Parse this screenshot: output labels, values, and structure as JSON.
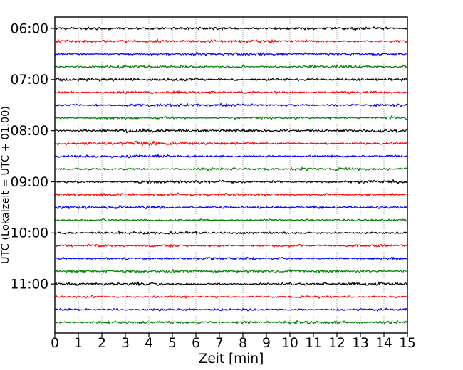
{
  "chart_data": {
    "type": "line",
    "subtype": "helicorder-dayplot",
    "title": "",
    "xlabel": "Zeit  [min]",
    "ylabel": "UTC (Lokalzeit = UTC + 01:00)",
    "xlim": [
      0,
      15
    ],
    "x_ticks": [
      "0",
      "1",
      "2",
      "3",
      "4",
      "5",
      "6",
      "7",
      "8",
      "9",
      "10",
      "11",
      "12",
      "13",
      "14",
      "15"
    ],
    "y_ticks": [
      {
        "label": "06:00",
        "row": 0
      },
      {
        "label": "07:00",
        "row": 4
      },
      {
        "label": "08:00",
        "row": 8
      },
      {
        "label": "09:00",
        "row": 12
      },
      {
        "label": "10:00",
        "row": 16
      },
      {
        "label": "11:00",
        "row": 20
      }
    ],
    "rows_per_hour": 4,
    "minutes_per_row": 15,
    "legend": null,
    "grid": {
      "vertical": true,
      "horizontal": false,
      "style": "dotted",
      "color": "#9a9a9a"
    },
    "axis_color": "#000000",
    "background": "#ffffff",
    "color_cycle": [
      "#000000",
      "#ff0000",
      "#0000ff",
      "#008000"
    ],
    "traces": [
      {
        "color_index": 0,
        "seed": 11,
        "amp": 0.95,
        "events": []
      },
      {
        "color_index": 1,
        "seed": 22,
        "amp": 0.9,
        "events": []
      },
      {
        "color_index": 2,
        "seed": 33,
        "amp": 0.85,
        "events": []
      },
      {
        "color_index": 3,
        "seed": 44,
        "amp": 0.85,
        "events": []
      },
      {
        "color_index": 0,
        "seed": 55,
        "amp": 1.05,
        "events": []
      },
      {
        "color_index": 1,
        "seed": 66,
        "amp": 0.9,
        "events": []
      },
      {
        "color_index": 2,
        "seed": 77,
        "amp": 0.88,
        "events": []
      },
      {
        "color_index": 3,
        "seed": 88,
        "amp": 0.85,
        "events": [
          {
            "center": 14.35,
            "width": 0.18,
            "gain": 1.8
          }
        ]
      },
      {
        "color_index": 0,
        "seed": 99,
        "amp": 0.95,
        "events": [
          {
            "center": 4.0,
            "width": 0.9,
            "gain": 0.45
          }
        ]
      },
      {
        "color_index": 1,
        "seed": 111,
        "amp": 0.9,
        "events": [
          {
            "center": 3.85,
            "width": 0.5,
            "gain": 0.9
          }
        ]
      },
      {
        "color_index": 2,
        "seed": 123,
        "amp": 0.85,
        "events": []
      },
      {
        "color_index": 3,
        "seed": 135,
        "amp": 0.82,
        "events": []
      },
      {
        "color_index": 0,
        "seed": 147,
        "amp": 0.92,
        "events": []
      },
      {
        "color_index": 1,
        "seed": 159,
        "amp": 0.92,
        "events": []
      },
      {
        "color_index": 2,
        "seed": 171,
        "amp": 0.85,
        "events": []
      },
      {
        "color_index": 3,
        "seed": 183,
        "amp": 0.8,
        "events": []
      },
      {
        "color_index": 0,
        "seed": 195,
        "amp": 0.95,
        "events": []
      },
      {
        "color_index": 1,
        "seed": 207,
        "amp": 0.88,
        "events": []
      },
      {
        "color_index": 2,
        "seed": 219,
        "amp": 0.82,
        "events": []
      },
      {
        "color_index": 3,
        "seed": 231,
        "amp": 0.85,
        "events": []
      },
      {
        "color_index": 0,
        "seed": 243,
        "amp": 0.92,
        "events": []
      },
      {
        "color_index": 1,
        "seed": 255,
        "amp": 0.88,
        "events": []
      },
      {
        "color_index": 2,
        "seed": 267,
        "amp": 0.8,
        "events": []
      },
      {
        "color_index": 3,
        "seed": 279,
        "amp": 0.82,
        "events": []
      }
    ]
  }
}
